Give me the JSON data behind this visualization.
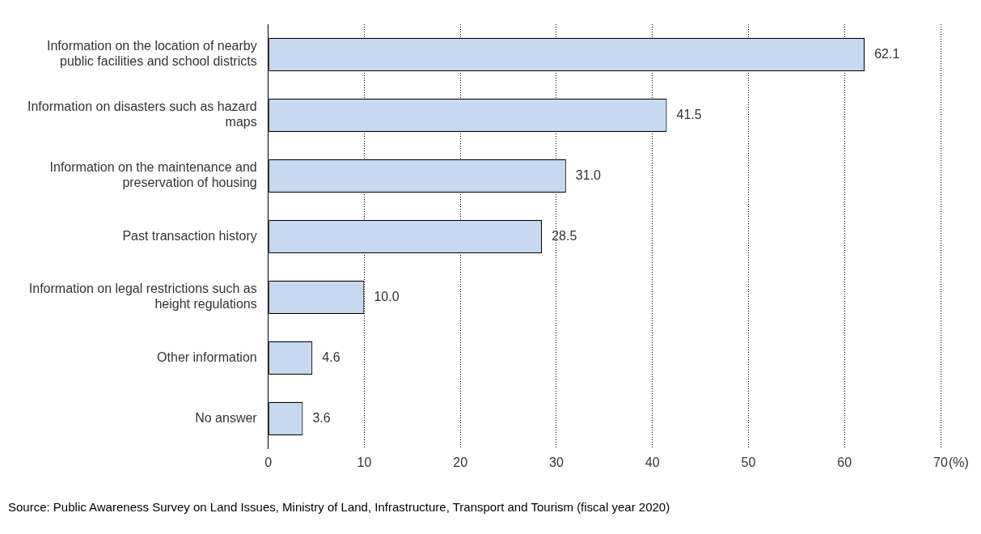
{
  "chart_data": {
    "type": "bar",
    "orientation": "horizontal",
    "xlabel": "(%)",
    "categories": [
      "Information on the location of nearby public facilities and school districts",
      "Information on disasters such as hazard maps",
      "Information on the maintenance and preservation of housing",
      "Past transaction history",
      "Information on legal restrictions such as height regulations",
      "Other information",
      "No answer"
    ],
    "values": [
      62.1,
      41.5,
      31.0,
      28.5,
      10.0,
      4.6,
      3.6
    ],
    "value_labels": [
      "62.1",
      "41.5",
      "31.0",
      "28.5",
      "10.0",
      "4.6",
      "3.6"
    ],
    "color": "#c6d9f1",
    "xlim": [
      0,
      70
    ],
    "xticks": [
      0,
      10,
      20,
      30,
      40,
      50,
      60,
      70
    ],
    "grid": "x",
    "legend": false,
    "annotations": [
      "Source: Public Awareness Survey on Land Issues, Ministry of Land, Infrastructure, Transport and Tourism (fiscal year 2020)"
    ]
  }
}
